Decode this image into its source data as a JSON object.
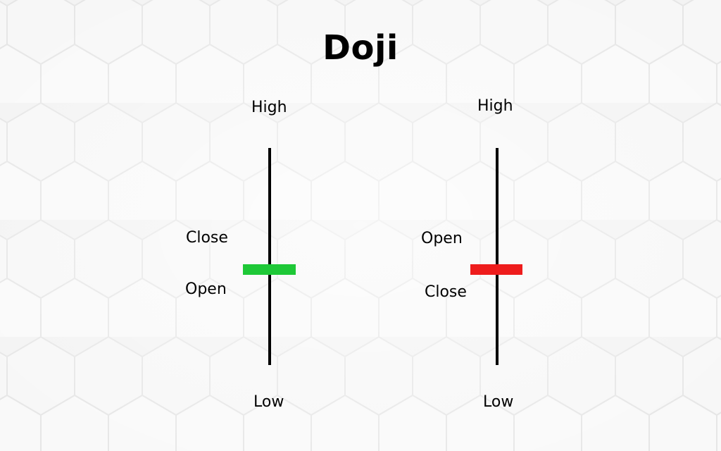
{
  "title": "Doji",
  "colors": {
    "background": "#f3f3f3",
    "bullish_body": "#1ec837",
    "bearish_body": "#ee1c1c",
    "wick": "#000000"
  },
  "candles": [
    {
      "name": "bullish-doji",
      "labels": {
        "high": "High",
        "close": "Close",
        "open": "Open",
        "low": "Low"
      }
    },
    {
      "name": "bearish-doji",
      "labels": {
        "high": "High",
        "open": "Open",
        "close": "Close",
        "low": "Low"
      }
    }
  ]
}
